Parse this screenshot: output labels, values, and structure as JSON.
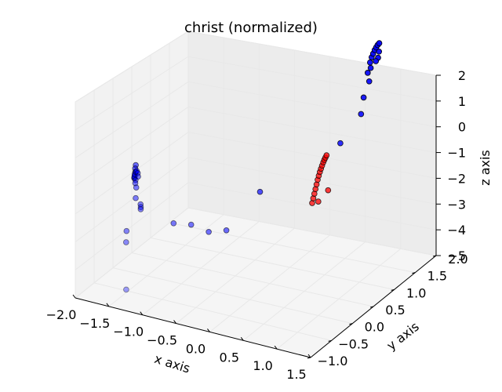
{
  "chart_data": {
    "type": "scatter3d",
    "title": "christ (normalized)",
    "xlabel": "x axis",
    "ylabel": "y axis",
    "zlabel": "z axis",
    "xticks": [
      "−2.0",
      "−1.5",
      "−1.0",
      "−0.5",
      "0.0",
      "0.5",
      "1.0",
      "1.5"
    ],
    "yticks": [
      "−1.0",
      "−0.5",
      "0.0",
      "0.5",
      "1.0",
      "1.5",
      "2.0"
    ],
    "zticks": [
      "−5",
      "−4",
      "−3",
      "−2",
      "−1",
      "0",
      "1",
      "2"
    ],
    "xlim": [
      -2.0,
      1.5
    ],
    "ylim": [
      -1.0,
      2.0
    ],
    "zlim": [
      -5,
      2
    ],
    "grid": true,
    "colors": {
      "blue_series": "#0000ff",
      "red_series": "#ff0000",
      "edge": "#000000",
      "pane": "#f2f2f2"
    },
    "series": [
      {
        "color": "#0000ff",
        "points": [
          {
            "x": -1.75,
            "y": 0.15,
            "z": -1.5
          },
          {
            "x": -1.73,
            "y": 0.1,
            "z": -1.55
          },
          {
            "x": -1.7,
            "y": 0.05,
            "z": -1.6
          },
          {
            "x": -1.68,
            "y": 0.0,
            "z": -1.65
          },
          {
            "x": -1.66,
            "y": -0.05,
            "z": -1.68
          },
          {
            "x": -1.64,
            "y": -0.08,
            "z": -1.62
          },
          {
            "x": -1.63,
            "y": -0.1,
            "z": -1.55
          },
          {
            "x": -1.62,
            "y": -0.11,
            "z": -1.45
          },
          {
            "x": -1.6,
            "y": -0.12,
            "z": -1.35
          },
          {
            "x": -1.58,
            "y": -0.13,
            "z": -1.3
          },
          {
            "x": -1.56,
            "y": -0.14,
            "z": -1.35
          },
          {
            "x": -1.55,
            "y": -0.15,
            "z": -1.45
          },
          {
            "x": -1.57,
            "y": -0.18,
            "z": -1.55
          },
          {
            "x": -1.55,
            "y": -0.22,
            "z": -1.6
          },
          {
            "x": -1.52,
            "y": -0.25,
            "z": -1.7
          },
          {
            "x": -1.5,
            "y": -0.3,
            "z": -2.0
          },
          {
            "x": -1.4,
            "y": -0.35,
            "z": -2.1
          },
          {
            "x": -1.38,
            "y": -0.38,
            "z": -2.15
          },
          {
            "x": -1.37,
            "y": -0.4,
            "z": -2.2
          },
          {
            "x": -1.55,
            "y": -0.45,
            "z": -3.0
          },
          {
            "x": -1.5,
            "y": -0.55,
            "z": -3.25
          },
          {
            "x": -1.3,
            "y": -0.9,
            "z": -4.4
          },
          {
            "x": -1.0,
            "y": -0.2,
            "z": -2.7
          },
          {
            "x": -0.8,
            "y": -0.1,
            "z": -2.75
          },
          {
            "x": -0.6,
            "y": 0.0,
            "z": -3.0
          },
          {
            "x": -0.4,
            "y": 0.1,
            "z": -2.95
          },
          {
            "x": -0.2,
            "y": 0.6,
            "z": -2.1
          },
          {
            "x": 0.55,
            "y": 1.3,
            "z": -0.9
          },
          {
            "x": 0.7,
            "y": 1.55,
            "z": -0.15
          },
          {
            "x": 0.65,
            "y": 1.7,
            "z": 0.2
          },
          {
            "x": 0.7,
            "y": 1.75,
            "z": 0.7
          },
          {
            "x": 0.65,
            "y": 1.8,
            "z": 0.9
          },
          {
            "x": 0.68,
            "y": 1.82,
            "z": 1.05
          },
          {
            "x": 0.66,
            "y": 1.84,
            "z": 1.2
          },
          {
            "x": 0.67,
            "y": 1.86,
            "z": 1.35
          },
          {
            "x": 0.68,
            "y": 1.88,
            "z": 1.45
          },
          {
            "x": 0.69,
            "y": 1.9,
            "z": 1.55
          },
          {
            "x": 0.7,
            "y": 1.92,
            "z": 1.62
          },
          {
            "x": 0.71,
            "y": 1.94,
            "z": 1.68
          },
          {
            "x": 0.72,
            "y": 1.96,
            "z": 1.72
          },
          {
            "x": 0.74,
            "y": 1.92,
            "z": 1.5
          },
          {
            "x": 0.75,
            "y": 1.88,
            "z": 1.35
          },
          {
            "x": 0.73,
            "y": 1.86,
            "z": 1.25
          }
        ]
      },
      {
        "color": "#ff0000",
        "points": [
          {
            "x": 0.35,
            "y": 0.95,
            "z": -2.6
          },
          {
            "x": 0.36,
            "y": 0.96,
            "z": -2.45
          },
          {
            "x": 0.37,
            "y": 0.97,
            "z": -2.3
          },
          {
            "x": 0.38,
            "y": 0.98,
            "z": -2.15
          },
          {
            "x": 0.39,
            "y": 0.99,
            "z": -2.0
          },
          {
            "x": 0.4,
            "y": 1.0,
            "z": -1.85
          },
          {
            "x": 0.41,
            "y": 1.01,
            "z": -1.72
          },
          {
            "x": 0.42,
            "y": 1.02,
            "z": -1.6
          },
          {
            "x": 0.43,
            "y": 1.03,
            "z": -1.5
          },
          {
            "x": 0.44,
            "y": 1.04,
            "z": -1.4
          },
          {
            "x": 0.45,
            "y": 1.05,
            "z": -1.3
          },
          {
            "x": 0.46,
            "y": 1.06,
            "z": -1.22
          },
          {
            "x": 0.47,
            "y": 1.07,
            "z": -1.15
          },
          {
            "x": 0.48,
            "y": 1.08,
            "z": -1.08
          },
          {
            "x": 0.42,
            "y": 0.98,
            "z": -2.55
          },
          {
            "x": 0.52,
            "y": 1.05,
            "z": -2.2
          }
        ]
      }
    ]
  }
}
